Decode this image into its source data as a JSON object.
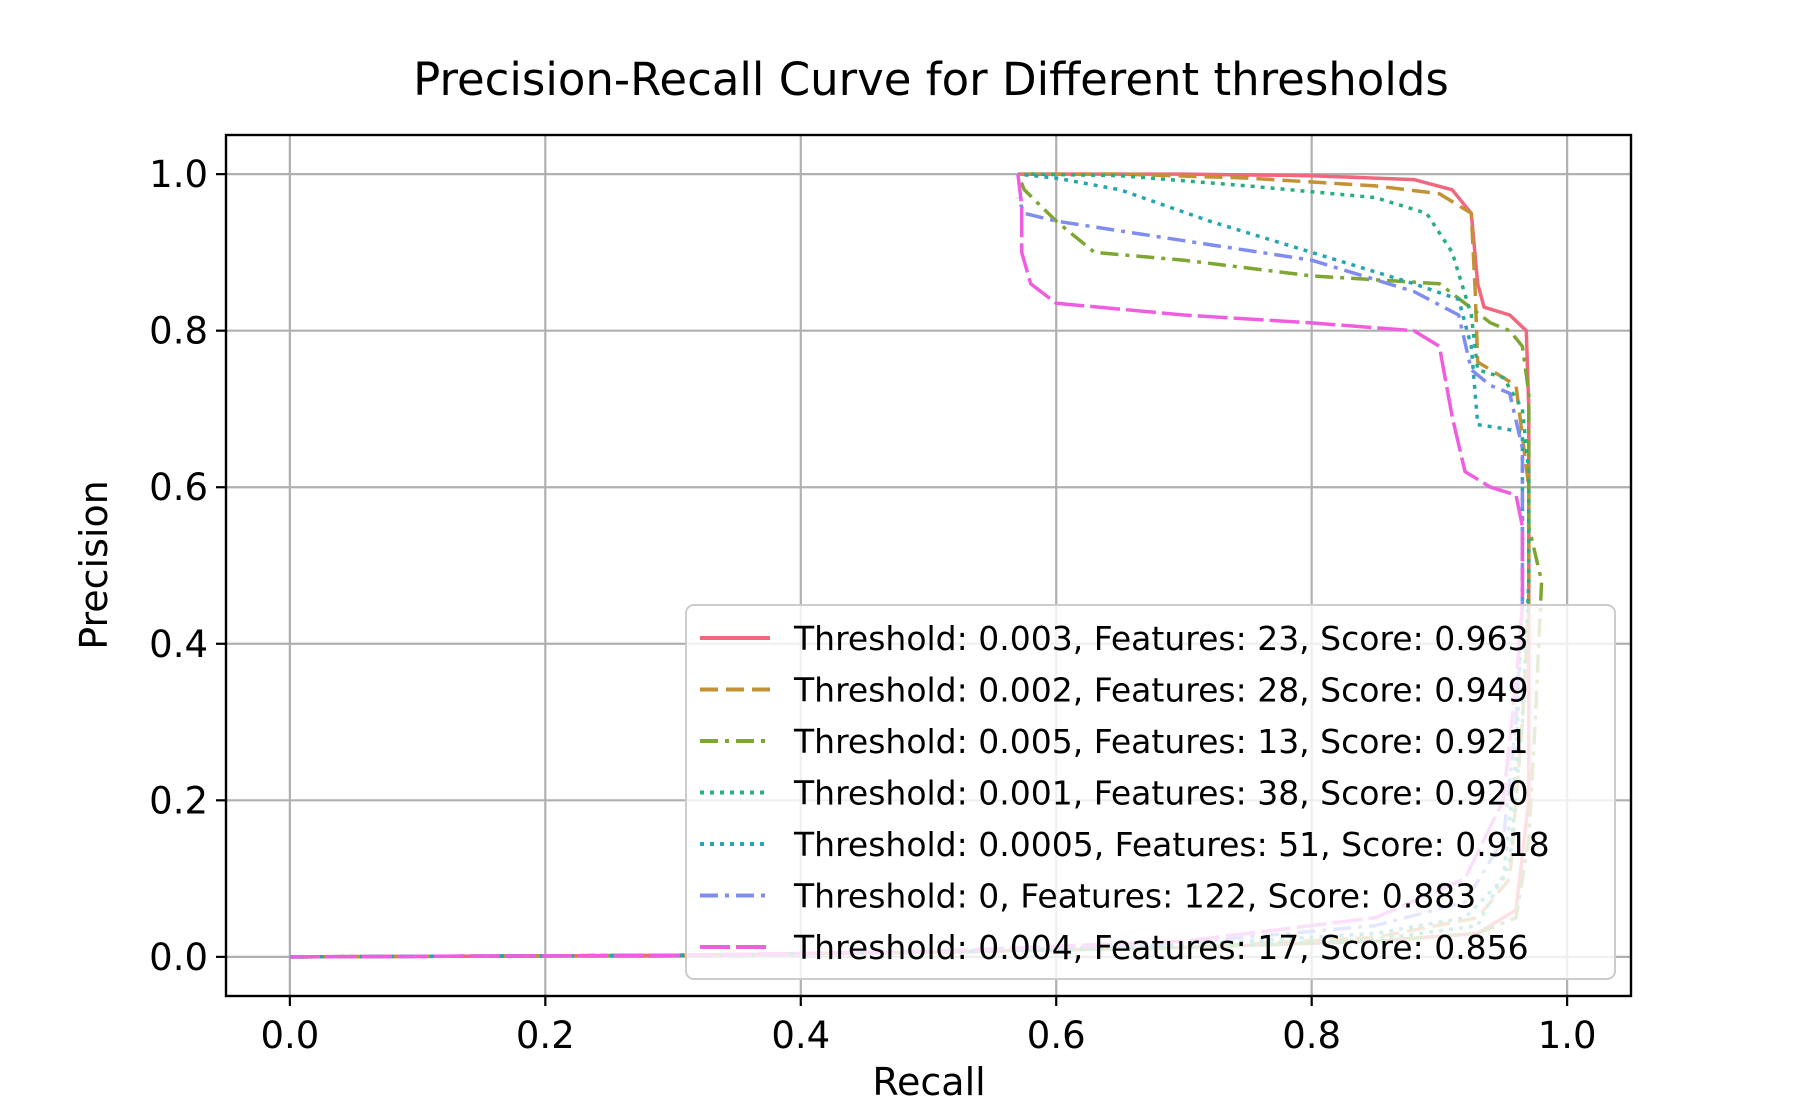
{
  "chart_data": {
    "type": "line",
    "title": "Precision-Recall Curve for Different thresholds",
    "xlabel": "Recall",
    "ylabel": "Precision",
    "xlim": [
      -0.05,
      1.05
    ],
    "ylim": [
      -0.05,
      1.05
    ],
    "xticks": [
      "0.0",
      "0.2",
      "0.4",
      "0.6",
      "0.8",
      "1.0"
    ],
    "yticks": [
      "0.0",
      "0.2",
      "0.4",
      "0.6",
      "0.8",
      "1.0"
    ],
    "grid": true,
    "legend_position": "lower-right",
    "series": [
      {
        "name": "Threshold: 0.003, Features: 23, Score: 0.963",
        "color": "#f0677e",
        "style": "solid",
        "points": [
          [
            0.0,
            0.0
          ],
          [
            0.3,
            0.002
          ],
          [
            0.5,
            0.006
          ],
          [
            0.7,
            0.012
          ],
          [
            0.85,
            0.02
          ],
          [
            0.93,
            0.03
          ],
          [
            0.96,
            0.06
          ],
          [
            0.97,
            0.2
          ],
          [
            0.97,
            0.4
          ],
          [
            0.97,
            0.62
          ],
          [
            0.97,
            0.7
          ],
          [
            0.968,
            0.8
          ],
          [
            0.955,
            0.82
          ],
          [
            0.935,
            0.83
          ],
          [
            0.93,
            0.86
          ],
          [
            0.925,
            0.95
          ],
          [
            0.91,
            0.98
          ],
          [
            0.88,
            0.993
          ],
          [
            0.8,
            0.998
          ],
          [
            0.7,
            1.0
          ],
          [
            0.6,
            1.0
          ],
          [
            0.57,
            1.0
          ]
        ]
      },
      {
        "name": "Threshold: 0.002, Features: 28, Score: 0.949",
        "color": "#c39235",
        "style": "dashed",
        "points": [
          [
            0.0,
            0.0
          ],
          [
            0.3,
            0.002
          ],
          [
            0.5,
            0.006
          ],
          [
            0.7,
            0.012
          ],
          [
            0.85,
            0.025
          ],
          [
            0.93,
            0.05
          ],
          [
            0.955,
            0.1
          ],
          [
            0.965,
            0.3
          ],
          [
            0.97,
            0.45
          ],
          [
            0.97,
            0.6
          ],
          [
            0.96,
            0.73
          ],
          [
            0.94,
            0.75
          ],
          [
            0.93,
            0.76
          ],
          [
            0.928,
            0.85
          ],
          [
            0.925,
            0.95
          ],
          [
            0.9,
            0.975
          ],
          [
            0.85,
            0.985
          ],
          [
            0.75,
            0.995
          ],
          [
            0.65,
            1.0
          ],
          [
            0.57,
            1.0
          ]
        ]
      },
      {
        "name": "Threshold: 0.005, Features: 13, Score: 0.921",
        "color": "#7ea633",
        "style": "dashdot",
        "points": [
          [
            0.0,
            0.0
          ],
          [
            0.3,
            0.002
          ],
          [
            0.5,
            0.006
          ],
          [
            0.7,
            0.012
          ],
          [
            0.85,
            0.02
          ],
          [
            0.93,
            0.03
          ],
          [
            0.96,
            0.05
          ],
          [
            0.97,
            0.15
          ],
          [
            0.975,
            0.3
          ],
          [
            0.98,
            0.48
          ],
          [
            0.97,
            0.55
          ],
          [
            0.97,
            0.72
          ],
          [
            0.965,
            0.78
          ],
          [
            0.955,
            0.8
          ],
          [
            0.94,
            0.81
          ],
          [
            0.92,
            0.835
          ],
          [
            0.9,
            0.86
          ],
          [
            0.8,
            0.87
          ],
          [
            0.7,
            0.89
          ],
          [
            0.63,
            0.9
          ],
          [
            0.6,
            0.94
          ],
          [
            0.575,
            0.98
          ],
          [
            0.57,
            1.0
          ]
        ]
      },
      {
        "name": "Threshold: 0.001, Features: 38, Score: 0.920",
        "color": "#28ae82",
        "style": "dotted",
        "points": [
          [
            0.0,
            0.0
          ],
          [
            0.3,
            0.002
          ],
          [
            0.5,
            0.006
          ],
          [
            0.7,
            0.012
          ],
          [
            0.85,
            0.022
          ],
          [
            0.93,
            0.04
          ],
          [
            0.955,
            0.12
          ],
          [
            0.965,
            0.3
          ],
          [
            0.97,
            0.48
          ],
          [
            0.97,
            0.62
          ],
          [
            0.965,
            0.7
          ],
          [
            0.95,
            0.74
          ],
          [
            0.93,
            0.75
          ],
          [
            0.925,
            0.82
          ],
          [
            0.91,
            0.9
          ],
          [
            0.89,
            0.95
          ],
          [
            0.85,
            0.97
          ],
          [
            0.75,
            0.985
          ],
          [
            0.65,
            0.998
          ],
          [
            0.58,
            1.0
          ]
        ]
      },
      {
        "name": "Threshold: 0.0005, Features: 51, Score: 0.918",
        "color": "#25a5b2",
        "style": "dotted",
        "points": [
          [
            0.0,
            0.0
          ],
          [
            0.3,
            0.002
          ],
          [
            0.5,
            0.006
          ],
          [
            0.7,
            0.015
          ],
          [
            0.85,
            0.03
          ],
          [
            0.92,
            0.05
          ],
          [
            0.95,
            0.1
          ],
          [
            0.96,
            0.25
          ],
          [
            0.965,
            0.45
          ],
          [
            0.965,
            0.6
          ],
          [
            0.965,
            0.67
          ],
          [
            0.95,
            0.675
          ],
          [
            0.93,
            0.68
          ],
          [
            0.925,
            0.78
          ],
          [
            0.915,
            0.84
          ],
          [
            0.88,
            0.86
          ],
          [
            0.8,
            0.9
          ],
          [
            0.72,
            0.94
          ],
          [
            0.65,
            0.98
          ],
          [
            0.6,
            0.995
          ],
          [
            0.57,
            1.0
          ]
        ]
      },
      {
        "name": "Threshold: 0, Features: 122, Score: 0.883",
        "color": "#7f8cf2",
        "style": "dashdot",
        "points": [
          [
            0.0,
            0.0
          ],
          [
            0.3,
            0.002
          ],
          [
            0.5,
            0.006
          ],
          [
            0.7,
            0.018
          ],
          [
            0.85,
            0.04
          ],
          [
            0.92,
            0.07
          ],
          [
            0.95,
            0.15
          ],
          [
            0.96,
            0.3
          ],
          [
            0.965,
            0.45
          ],
          [
            0.965,
            0.55
          ],
          [
            0.965,
            0.65
          ],
          [
            0.955,
            0.72
          ],
          [
            0.94,
            0.73
          ],
          [
            0.925,
            0.75
          ],
          [
            0.915,
            0.82
          ],
          [
            0.88,
            0.85
          ],
          [
            0.8,
            0.89
          ],
          [
            0.7,
            0.915
          ],
          [
            0.6,
            0.94
          ],
          [
            0.575,
            0.95
          ],
          [
            0.57,
            0.97
          ]
        ]
      },
      {
        "name": "Threshold: 0.004, Features: 17, Score: 0.856",
        "color": "#ef5ee1",
        "style": "longdash",
        "points": [
          [
            0.0,
            0.0
          ],
          [
            0.3,
            0.002
          ],
          [
            0.5,
            0.007
          ],
          [
            0.7,
            0.02
          ],
          [
            0.85,
            0.05
          ],
          [
            0.92,
            0.1
          ],
          [
            0.95,
            0.2
          ],
          [
            0.96,
            0.35
          ],
          [
            0.965,
            0.45
          ],
          [
            0.965,
            0.55
          ],
          [
            0.96,
            0.59
          ],
          [
            0.94,
            0.6
          ],
          [
            0.92,
            0.62
          ],
          [
            0.91,
            0.69
          ],
          [
            0.9,
            0.78
          ],
          [
            0.88,
            0.8
          ],
          [
            0.8,
            0.81
          ],
          [
            0.7,
            0.82
          ],
          [
            0.6,
            0.835
          ],
          [
            0.58,
            0.86
          ],
          [
            0.573,
            0.9
          ],
          [
            0.573,
            0.96
          ],
          [
            0.57,
            1.0
          ]
        ]
      }
    ]
  }
}
